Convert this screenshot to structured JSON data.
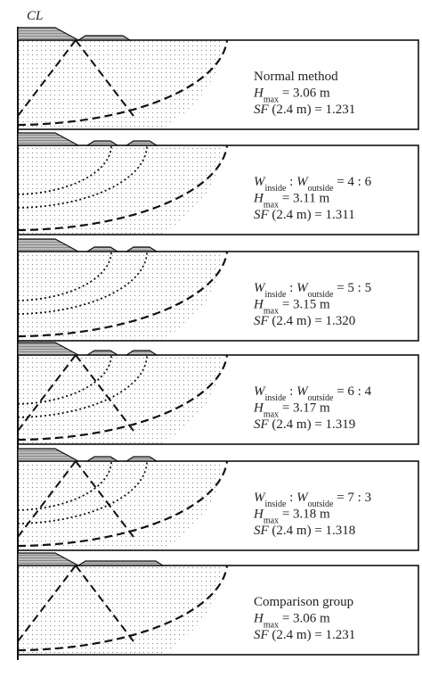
{
  "cl": "CL",
  "panels": [
    {
      "lines": [
        [
          "Normal method"
        ],
        [
          "H",
          "max",
          " = 3.06 m"
        ],
        [
          "SF",
          " (2.4 m) = 1.231"
        ]
      ]
    },
    {
      "lines": [
        [
          "W",
          "inside",
          " : ",
          "W",
          "outside",
          " = 4 : 6"
        ],
        [
          "H",
          "max",
          " = 3.11 m"
        ],
        [
          "SF",
          " (2.4 m) = 1.311"
        ]
      ]
    },
    {
      "lines": [
        [
          "W",
          "inside",
          " : ",
          "W",
          "outside",
          " = 5 : 5"
        ],
        [
          "H",
          "max",
          " = 3.15 m"
        ],
        [
          "SF",
          " (2.4 m) = 1.320"
        ]
      ]
    },
    {
      "lines": [
        [
          "W",
          "inside",
          " : ",
          "W",
          "outside",
          " = 6 : 4"
        ],
        [
          "H",
          "max",
          " = 3.17 m"
        ],
        [
          "SF",
          " (2.4 m) = 1.319"
        ]
      ]
    },
    {
      "lines": [
        [
          "W",
          "inside",
          " : ",
          "W",
          "outside",
          " = 7 : 3"
        ],
        [
          "H",
          "max",
          " = 3.18 m"
        ],
        [
          "SF",
          " (2.4 m) = 1.318"
        ]
      ]
    },
    {
      "lines": [
        [
          "Comparison group"
        ],
        [
          "H",
          "max",
          " = 3.06 m"
        ],
        [
          "SF",
          " (2.4 m) = 1.231"
        ]
      ]
    }
  ]
}
